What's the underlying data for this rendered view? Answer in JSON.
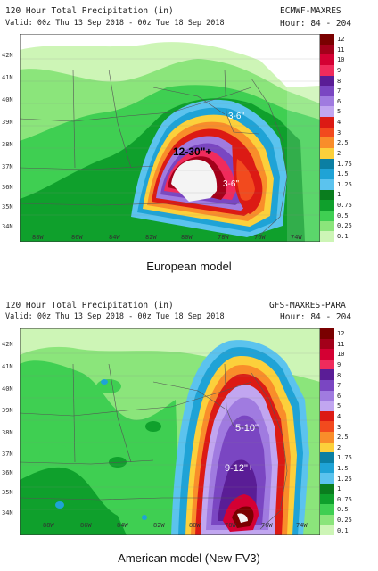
{
  "panels": [
    {
      "title": "120 Hour Total Precipitation (in)",
      "valid": "Valid: 00z Thu 13 Sep 2018 - 00z Tue 18 Sep 2018",
      "model_code": "ECMWF-MAXRES",
      "hours": "Hour: 84 - 204",
      "annotations": [
        "12-30\"+",
        "3-6\"",
        "3-6\""
      ],
      "caption": "European model"
    },
    {
      "title": "120 Hour Total Precipitation (in)",
      "valid": "Valid: 00z Thu 13 Sep 2018 - 00z Tue 18 Sep 2018",
      "model_code": "GFS-MAXRES-PARA",
      "hours": "Hour: 84 - 204",
      "annotations": [
        "5-10\"",
        "9-12\"+"
      ],
      "caption": "American model (New FV3)"
    }
  ],
  "legend": {
    "labels": [
      "12",
      "11",
      "10",
      "9",
      "8",
      "7",
      "6",
      "5",
      "4",
      "3",
      "2.5",
      "2",
      "1.75",
      "1.5",
      "1.25",
      "1",
      "0.75",
      "0.5",
      "0.25",
      "0.1"
    ],
    "colors": [
      "#7a0000",
      "#a3001a",
      "#d40033",
      "#f02b5c",
      "#5a1d96",
      "#7a46c2",
      "#a07be0",
      "#c1a6f0",
      "#dc1a14",
      "#f24a1e",
      "#f98d2a",
      "#fcd03b",
      "#0b7fa3",
      "#1fa3d6",
      "#5bc3ee",
      "#0a7d1e",
      "#0fa02c",
      "#3fcf52",
      "#8be57b",
      "#cdf5b6"
    ]
  },
  "lat_ticks": [
    "42N",
    "41N",
    "40N",
    "39N",
    "38N",
    "37N",
    "36N",
    "35N",
    "34N"
  ],
  "lon_ticks": [
    "88W",
    "86W",
    "84W",
    "82W",
    "80W",
    "78W",
    "76W",
    "74W"
  ]
}
